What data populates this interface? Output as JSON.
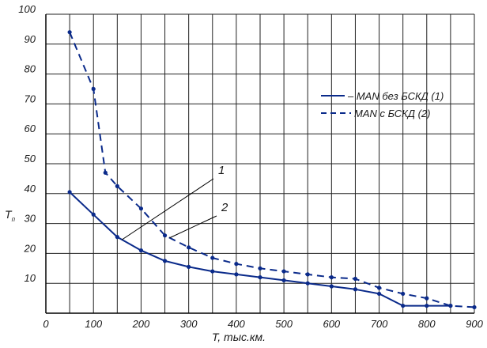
{
  "chart_data": {
    "type": "line",
    "xlabel": "T, тыс.км.",
    "ylabel": "T",
    "ylabel_subscript": "п",
    "xlim": [
      0,
      900
    ],
    "ylim": [
      0,
      100
    ],
    "xticks": [
      0,
      100,
      200,
      300,
      400,
      500,
      600,
      700,
      800,
      900
    ],
    "yticks": [
      10,
      20,
      30,
      40,
      50,
      60,
      70,
      80,
      90,
      100
    ],
    "grid": true,
    "legend_position": "top-right",
    "series": [
      {
        "name": "MAN без БСКД (1)",
        "style": "solid",
        "color": "#0a2a8a",
        "x": [
          50,
          100,
          150,
          200,
          250,
          300,
          350,
          400,
          450,
          500,
          550,
          600,
          650,
          700,
          750,
          800,
          850
        ],
        "y": [
          40.5,
          33,
          25.5,
          21,
          17.5,
          15.5,
          14,
          13,
          12,
          11,
          10,
          9,
          8,
          6.5,
          2.5,
          2.5,
          2.5
        ]
      },
      {
        "name": "MAN с БСКД (2)",
        "style": "dashed",
        "color": "#0a2a8a",
        "x": [
          50,
          100,
          125,
          150,
          200,
          250,
          300,
          350,
          400,
          450,
          500,
          550,
          600,
          650,
          700,
          750,
          800,
          850,
          900
        ],
        "y": [
          94,
          75,
          47,
          42.5,
          35,
          26,
          22,
          18.5,
          16.5,
          15,
          14,
          13,
          12,
          11.5,
          8.5,
          6.5,
          5,
          2.5,
          2
        ]
      }
    ],
    "annotations": [
      {
        "text": "1",
        "target_series": 0,
        "target_x": 160
      },
      {
        "text": "2",
        "target_series": 1,
        "target_x": 260
      }
    ]
  }
}
